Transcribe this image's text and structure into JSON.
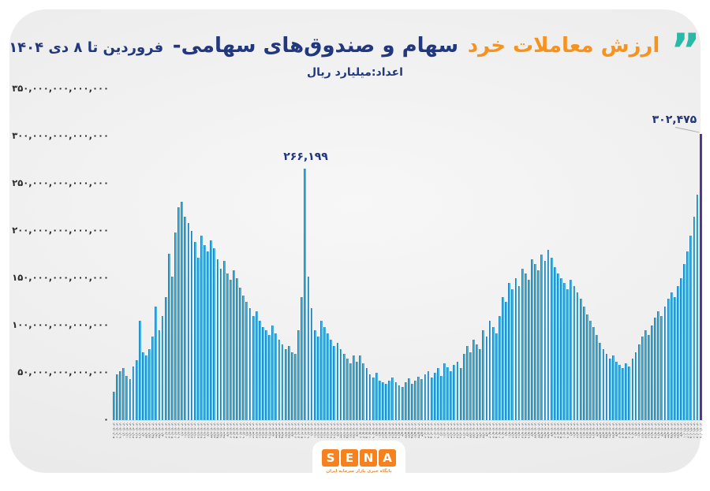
{
  "header": {
    "quote_open": "”",
    "quote_close": "“",
    "title_highlight": "ارزش معاملات خرد",
    "title_main": "سهام و صندوق‌های سهامی-",
    "title_range": "فروردین تا ۸ دی ۱۴۰۴",
    "subtitle": "اعداد:میلیارد ریال",
    "colors": {
      "highlight": "#F6921E",
      "main": "#21387E",
      "quote": "#2BB9A7"
    }
  },
  "chart_data": {
    "type": "bar",
    "title": "ارزش معاملات خرد سهام و صندوق‌های سهامی- فروردین تا ۸ دی ۱۴۰۴",
    "unit_note": "اعداد:میلیارد ریال",
    "xlabel": "",
    "ylabel": "ریال",
    "grid": false,
    "legend": false,
    "values_unit": "میلیارد ریال",
    "ylim_billion": [
      0,
      350000
    ],
    "y_tick_labels": [
      "۳۵۰,۰۰۰,۰۰۰,۰۰۰,۰۰۰",
      "۳۰۰,۰۰۰,۰۰۰,۰۰۰,۰۰۰",
      "۲۵۰,۰۰۰,۰۰۰,۰۰۰,۰۰۰",
      "۲۰۰,۰۰۰,۰۰۰,۰۰۰,۰۰۰",
      "۱۵۰,۰۰۰,۰۰۰,۰۰۰,۰۰۰",
      "۱۰۰,۰۰۰,۰۰۰,۰۰۰,۰۰۰",
      "۵۰,۰۰۰,۰۰۰,۰۰۰,۰۰۰",
      "۰"
    ],
    "x": {
      "year": "1404",
      "months": [
        {
          "m": 1,
          "days": [
            5,
            6,
            9,
            10,
            11,
            16,
            17,
            18,
            19,
            20,
            23,
            24,
            25,
            26,
            27,
            30
          ]
        },
        {
          "m": 2,
          "days": [
            2,
            3,
            5,
            6,
            9,
            10,
            11,
            12,
            13,
            16,
            17,
            18,
            19,
            20,
            23,
            24,
            25,
            26,
            27,
            30
          ]
        },
        {
          "m": 3,
          "days": [
            2,
            3,
            5,
            6,
            9,
            10,
            11,
            12,
            13,
            16,
            17,
            18,
            19,
            20,
            23,
            24,
            25,
            26,
            27,
            30
          ]
        },
        {
          "m": 4,
          "days": [
            2,
            3,
            5,
            6,
            9,
            10,
            11,
            12,
            13,
            16,
            17,
            18,
            19,
            20,
            23,
            24,
            25,
            26,
            27,
            30
          ]
        },
        {
          "m": 5,
          "days": [
            2,
            3,
            5,
            6,
            9,
            10,
            11,
            12,
            13,
            16,
            17,
            18,
            19,
            20,
            23,
            24,
            25,
            26,
            27,
            30
          ]
        },
        {
          "m": 6,
          "days": [
            2,
            3,
            5,
            6,
            9,
            10,
            11,
            12,
            13,
            16,
            17,
            18,
            19,
            20,
            23,
            24,
            25,
            26,
            27,
            30
          ]
        },
        {
          "m": 7,
          "days": [
            2,
            3,
            5,
            6,
            9,
            10,
            11,
            12,
            13,
            16,
            17,
            18,
            19,
            20,
            23,
            24,
            25,
            26,
            27,
            30
          ]
        },
        {
          "m": 8,
          "days": [
            2,
            3,
            5,
            6,
            9,
            10,
            11,
            12,
            13,
            16,
            17,
            18,
            19,
            20,
            23,
            24,
            25,
            26,
            27,
            30
          ]
        },
        {
          "m": 9,
          "days": [
            2,
            3,
            5,
            6,
            9,
            10,
            11,
            12,
            13,
            16,
            17,
            18,
            19,
            20,
            23,
            24,
            25,
            26,
            27,
            30
          ]
        },
        {
          "m": 10,
          "days": [
            1,
            2,
            5,
            6,
            7,
            8
          ]
        }
      ]
    },
    "values": [
      30000,
      48000,
      52000,
      55000,
      47000,
      43000,
      57000,
      63000,
      105000,
      72000,
      68000,
      75000,
      88000,
      120000,
      95000,
      110000,
      130000,
      176000,
      152000,
      198000,
      225000,
      231000,
      215000,
      208000,
      200000,
      188000,
      172000,
      195000,
      185000,
      178000,
      190000,
      182000,
      170000,
      160000,
      168000,
      155000,
      148000,
      158000,
      150000,
      140000,
      132000,
      125000,
      118000,
      110000,
      115000,
      105000,
      98000,
      95000,
      90000,
      100000,
      92000,
      85000,
      80000,
      75000,
      78000,
      72000,
      70000,
      95000,
      130000,
      266199,
      152000,
      118000,
      95000,
      88000,
      105000,
      98000,
      92000,
      85000,
      78000,
      82000,
      75000,
      70000,
      65000,
      60000,
      68000,
      62000,
      68000,
      60000,
      55000,
      48000,
      45000,
      50000,
      42000,
      40000,
      38000,
      42000,
      45000,
      40000,
      37000,
      35000,
      40000,
      44000,
      38000,
      42000,
      46000,
      43000,
      48000,
      52000,
      45000,
      50000,
      55000,
      47000,
      60000,
      56000,
      52000,
      58000,
      62000,
      55000,
      70000,
      78000,
      72000,
      85000,
      80000,
      75000,
      95000,
      88000,
      105000,
      98000,
      92000,
      110000,
      130000,
      125000,
      145000,
      138000,
      150000,
      142000,
      160000,
      155000,
      148000,
      170000,
      165000,
      158000,
      175000,
      168000,
      180000,
      172000,
      162000,
      155000,
      150000,
      145000,
      138000,
      148000,
      142000,
      135000,
      128000,
      120000,
      112000,
      105000,
      98000,
      90000,
      82000,
      75000,
      70000,
      65000,
      68000,
      62000,
      58000,
      55000,
      60000,
      57000,
      65000,
      72000,
      80000,
      88000,
      95000,
      90000,
      100000,
      108000,
      115000,
      110000,
      120000,
      128000,
      135000,
      130000,
      142000,
      150000,
      165000,
      178000,
      195000,
      215000,
      238000,
      302475
    ],
    "annotations": [
      {
        "index": 59,
        "label": "۲۶۶,۱۹۹",
        "value": 266199,
        "leader": false
      },
      {
        "index": 181,
        "label": "۳۰۲,۴۷۵",
        "value": 302475,
        "leader": true
      }
    ],
    "bar_color": "#41B4E4",
    "bar_edge_color": "#1B7CB5",
    "last_bar_color": "#5A3E99",
    "last_bar_edge_color": "#3F2D74",
    "label_color": "#20357B"
  },
  "footer_logo": {
    "letters": [
      "S",
      "E",
      "N",
      "A"
    ],
    "tagline": "پایگاه خبری بازار سرمایه ایران",
    "box_color": "#F5821F",
    "tagline_color": "#F08A2B"
  },
  "digits_map": "۰۱۲۳۴۵۶۷۸۹"
}
